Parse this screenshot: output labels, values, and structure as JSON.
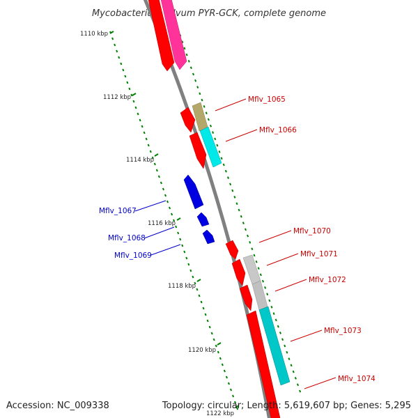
{
  "title": "Mycobacterium gilvum PYR-GCK, complete genome",
  "footer": {
    "accession": "Accession: NC_009338",
    "summary": "Topology: circular; Length: 5,619,607 bp; Genes: 5,295"
  },
  "colors": {
    "backbone": "#808080",
    "tick": "#008000",
    "forward_label": "#cc0000",
    "reverse_label": "#0000cc",
    "red_feature": "#ff0000",
    "magenta_feature": "#ff3399",
    "cyan_feature": "#00d8d8",
    "olive_feature": "#b3a76a",
    "gray_feature": "#bdbdbd",
    "blue_feature": "#0000e0"
  },
  "kbp_markers": [
    "1110 kbp",
    "1112 kbp",
    "1114 kbp",
    "1116 kbp",
    "1118 kbp",
    "1120 kbp",
    "1122 kbp"
  ],
  "gene_labels": [
    {
      "name": "Mflv_1065",
      "strand": "forward"
    },
    {
      "name": "Mflv_1066",
      "strand": "forward"
    },
    {
      "name": "Mflv_1067",
      "strand": "reverse"
    },
    {
      "name": "Mflv_1068",
      "strand": "reverse"
    },
    {
      "name": "Mflv_1069",
      "strand": "reverse"
    },
    {
      "name": "Mflv_1070",
      "strand": "forward"
    },
    {
      "name": "Mflv_1071",
      "strand": "forward"
    },
    {
      "name": "Mflv_1072",
      "strand": "forward"
    },
    {
      "name": "Mflv_1073",
      "strand": "forward"
    },
    {
      "name": "Mflv_1074",
      "strand": "forward"
    }
  ]
}
